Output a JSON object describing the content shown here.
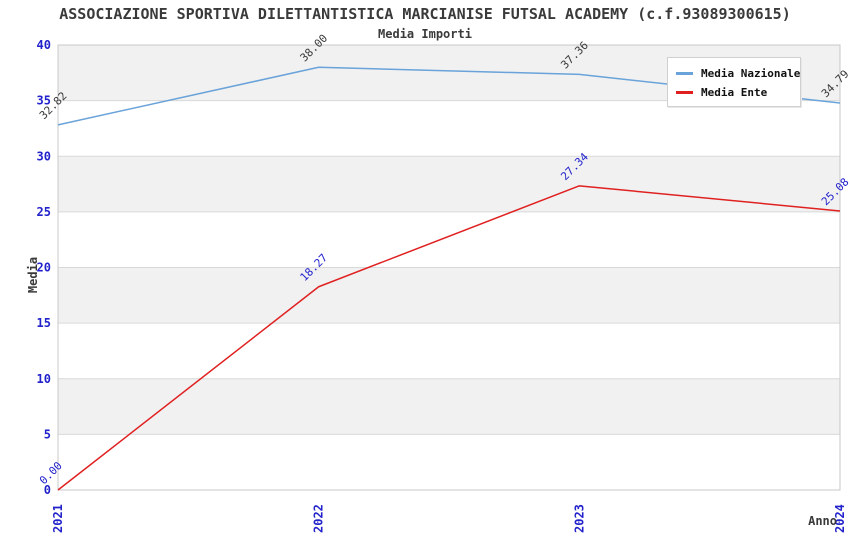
{
  "header": {
    "title": "ASSOCIAZIONE SPORTIVA DILETTANTISTICA MARCIANISE FUTSAL ACADEMY (c.f.93089300615)",
    "subtitle": "Media Importi"
  },
  "axes": {
    "y_title": "Media",
    "x_title": "Anno",
    "y_ticks": [
      0,
      5,
      10,
      15,
      20,
      25,
      30,
      35,
      40
    ],
    "x_ticks": [
      "2021",
      "2022",
      "2023",
      "2024"
    ]
  },
  "legend": {
    "items": [
      {
        "label": "Media Nazionale",
        "color": "#69a3d9"
      },
      {
        "label": "Media Ente",
        "color": "#e02020"
      }
    ]
  },
  "colors": {
    "tick_label": "#2222cc",
    "band_gray": "#f1f1f1",
    "band_white": "#ffffff",
    "gridline": "#d9d9d9",
    "plot_border": "#c8c8c8",
    "title_text": "#3a3a3a"
  },
  "chart_data": {
    "type": "line",
    "title": "Media Importi",
    "categories": [
      "2021",
      "2022",
      "2023",
      "2024"
    ],
    "series": [
      {
        "name": "Media Nazionale",
        "color": "#69a3d9",
        "label_color": "#3a3a3a",
        "values": [
          32.82,
          38.0,
          37.36,
          34.79
        ],
        "point_labels": [
          "32.82",
          "38.00",
          "37.36",
          "34.79"
        ]
      },
      {
        "name": "Media Ente",
        "color": "#e02020",
        "label_color": "#2222cc",
        "values": [
          0.0,
          18.27,
          27.34,
          25.08
        ],
        "point_labels": [
          "0.00",
          "18.27",
          "27.34",
          "25.08"
        ]
      }
    ],
    "xlabel": "Anno",
    "ylabel": "Media",
    "ylim": [
      0,
      40
    ],
    "ytick_step": 5,
    "grid": true,
    "band_fill": "alternating-horizontal",
    "legend_position": "top-right",
    "point_label_rotation_deg": -45,
    "x_tick_rotation_deg": -90
  }
}
